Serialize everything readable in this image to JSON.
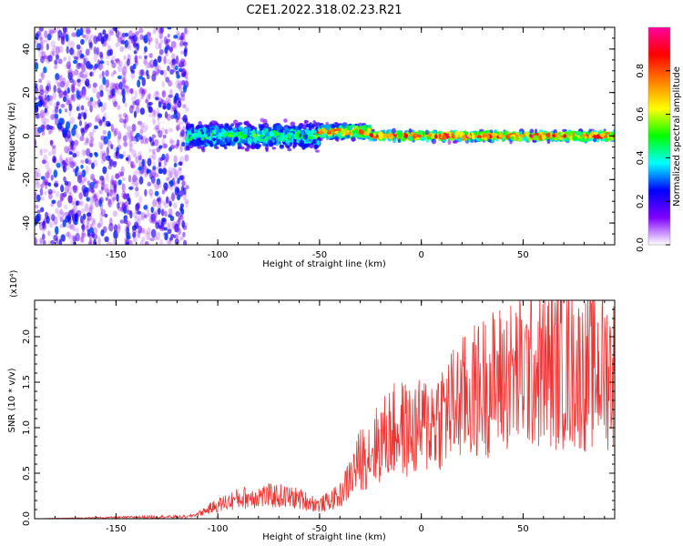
{
  "title": "C2E1.2022.318.02.23.R21",
  "chart_data": [
    {
      "type": "heatmap",
      "xlabel": "Height of straight line (km)",
      "ylabel": "Frequency (Hz)",
      "xlim": [
        -190,
        95
      ],
      "ylim": [
        -50,
        50
      ],
      "xticks": [
        -150,
        -100,
        -50,
        0,
        50
      ],
      "yticks": [
        -40,
        -20,
        0,
        20,
        40
      ],
      "colorbar": {
        "label": "Normalized spectral amplitude",
        "range": [
          0,
          1
        ],
        "ticks": [
          0.0,
          0.2,
          0.4,
          0.6,
          0.8
        ],
        "tick_labels": [
          "0.0",
          "0.2",
          "0.4",
          "0.6",
          "0.8"
        ],
        "colormap": [
          "#ffffff",
          "#8000ff",
          "#0000ff",
          "#00ffff",
          "#00ff00",
          "#ffff00",
          "#ff8000",
          "#ff0000",
          "#ff00a0"
        ]
      },
      "regions": [
        {
          "x_range": [
            -190,
            -115
          ],
          "freq_range": [
            -50,
            50
          ],
          "amplitude": "low, scattered"
        },
        {
          "x_range": [
            -115,
            -50
          ],
          "center_freq": 0,
          "spread_hz": 8,
          "amplitude": "0.2-0.5"
        },
        {
          "x_range": [
            -50,
            -25
          ],
          "center_freq": 2,
          "spread_hz": 4,
          "amplitude": "0.4-0.9"
        },
        {
          "x_range": [
            -25,
            95
          ],
          "center_freq": 0,
          "spread_hz": 3,
          "amplitude": "0.5-0.95"
        }
      ]
    },
    {
      "type": "line",
      "xlabel": "Height of straight line (km)",
      "ylabel": "SNR (10 * v/v)",
      "yscale_note": "(x10⁴)",
      "xlim": [
        -190,
        95
      ],
      "ylim": [
        0,
        2.4
      ],
      "xticks": [
        -150,
        -100,
        -50,
        0,
        50
      ],
      "yticks": [
        0.0,
        0.5,
        1.0,
        1.5,
        2.0
      ],
      "ytick_labels": [
        "0.0",
        "0.5",
        "1.0",
        "1.5",
        "2.0"
      ],
      "color": "#ee3333",
      "series": [
        {
          "x": [
            -190,
            -160,
            -130,
            -115,
            -110,
            -100,
            -90,
            -80,
            -70,
            -60,
            -50,
            -45,
            -40,
            -35,
            -30,
            -25,
            -20,
            -15,
            -10,
            -5,
            0,
            10,
            20,
            30,
            40,
            50,
            60,
            70,
            80,
            90,
            95
          ],
          "y": [
            0.0,
            0.01,
            0.02,
            0.02,
            0.05,
            0.15,
            0.22,
            0.25,
            0.25,
            0.22,
            0.15,
            0.2,
            0.25,
            0.45,
            0.65,
            0.75,
            0.85,
            0.95,
            1.0,
            0.95,
            1.0,
            1.15,
            1.3,
            1.45,
            1.55,
            1.6,
            1.65,
            1.65,
            1.6,
            1.65,
            1.6
          ]
        }
      ]
    }
  ]
}
